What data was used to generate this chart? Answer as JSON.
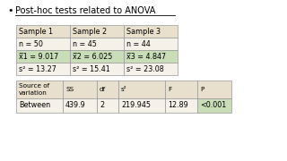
{
  "title": "Post-hoc tests related to ANOVA",
  "bg_color": "#f5f0e8",
  "header_bg": "#e8e0cc",
  "mean_row_bg": "#c8ddb8",
  "table1_headers": [
    "Sample 1",
    "Sample 2",
    "Sample 3"
  ],
  "table1_rows": [
    [
      "n = 50",
      "n = 45",
      "n = 44"
    ],
    [
      "χ1 = 9.017",
      "χ2 = 6.025",
      "χ3 = 4.847"
    ],
    [
      "s² = 13.27",
      "s² = 15.41",
      "s² = 23.08"
    ]
  ],
  "table2_headers": [
    "Source of\nvariation",
    "SS",
    "df",
    "s²",
    "F",
    "P"
  ],
  "table2_row": [
    "Between",
    "439.9",
    "2",
    "219.945",
    "12.89",
    "<0.001"
  ]
}
